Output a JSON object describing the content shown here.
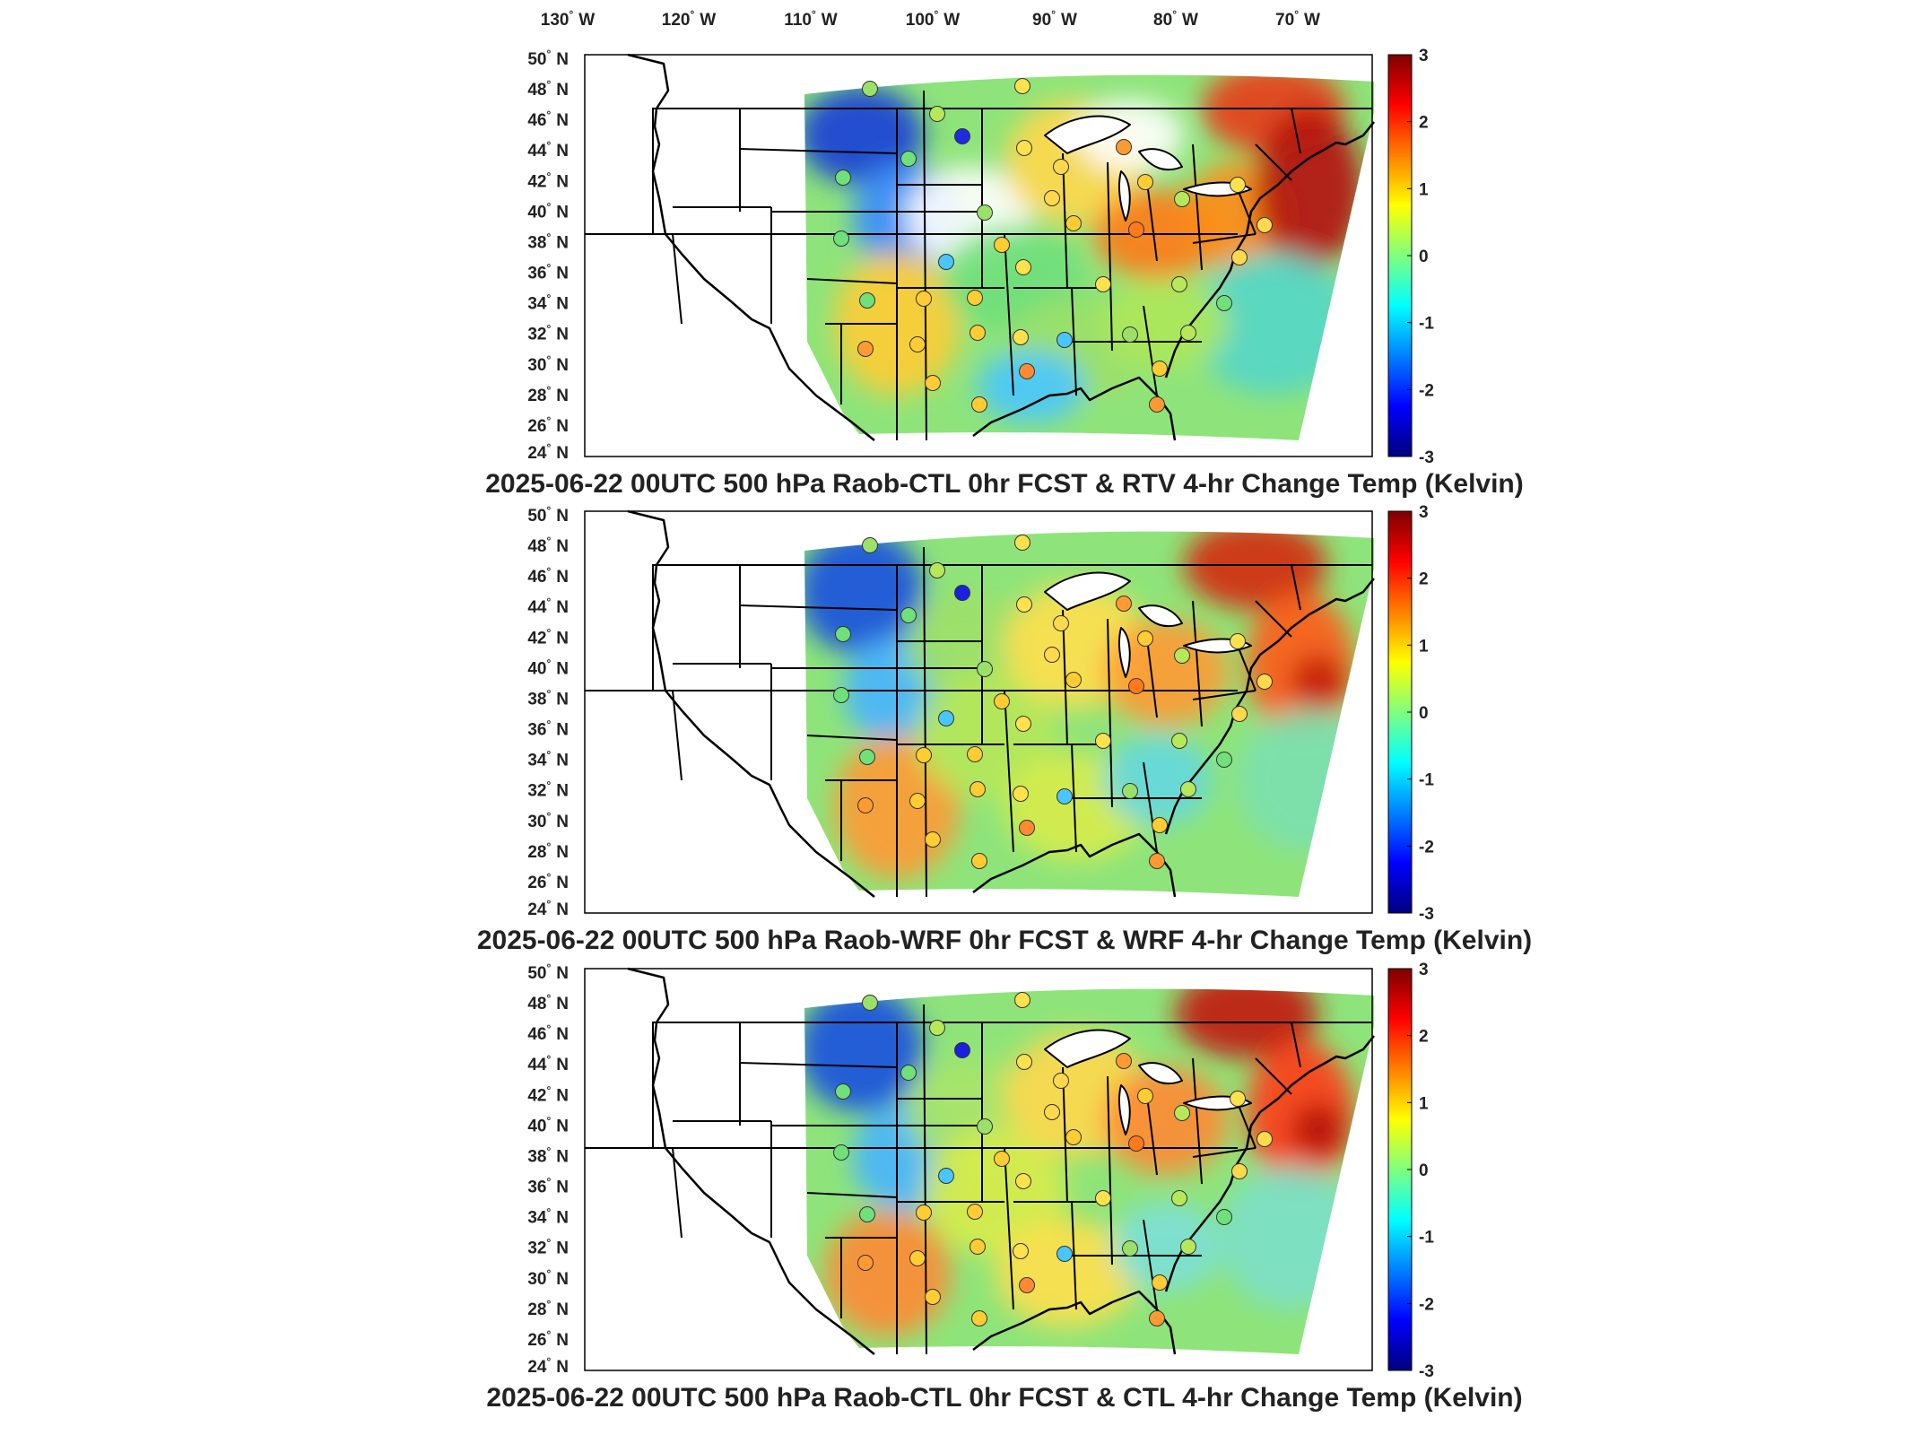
{
  "longitude_labels": [
    {
      "deg": "130",
      "hemi": "W"
    },
    {
      "deg": "120",
      "hemi": "W"
    },
    {
      "deg": "110",
      "hemi": "W"
    },
    {
      "deg": "100",
      "hemi": "W"
    },
    {
      "deg": "90",
      "hemi": "W"
    },
    {
      "deg": "80",
      "hemi": "W"
    },
    {
      "deg": "70",
      "hemi": "W"
    }
  ],
  "latitude_labels": [
    {
      "deg": "50",
      "hemi": "N"
    },
    {
      "deg": "48",
      "hemi": "N"
    },
    {
      "deg": "46",
      "hemi": "N"
    },
    {
      "deg": "44",
      "hemi": "N"
    },
    {
      "deg": "42",
      "hemi": "N"
    },
    {
      "deg": "40",
      "hemi": "N"
    },
    {
      "deg": "38",
      "hemi": "N"
    },
    {
      "deg": "36",
      "hemi": "N"
    },
    {
      "deg": "34",
      "hemi": "N"
    },
    {
      "deg": "32",
      "hemi": "N"
    },
    {
      "deg": "30",
      "hemi": "N"
    },
    {
      "deg": "28",
      "hemi": "N"
    },
    {
      "deg": "26",
      "hemi": "N"
    },
    {
      "deg": "24",
      "hemi": "N"
    }
  ],
  "colorbar": {
    "ticks": [
      "3",
      "2",
      "1",
      "0",
      "-1",
      "-2",
      "-3"
    ],
    "colors": [
      "#7f0000",
      "#ff0000",
      "#ff8000",
      "#ffff00",
      "#80ff80",
      "#00ffff",
      "#0080ff",
      "#0000ff",
      "#00007f"
    ]
  },
  "panels": [
    {
      "title": "2025-06-22 00UTC 500 hPa Raob-CTL 0hr FCST & RTV 4-hr Change Temp (Kelvin)"
    },
    {
      "title": "2025-06-22 00UTC 500 hPa Raob-WRF 0hr FCST & WRF 4-hr Change Temp (Kelvin)"
    },
    {
      "title": "2025-06-22 00UTC 500 hPa Raob-CTL 0hr FCST & CTL 4-hr Change Temp (Kelvin)"
    }
  ]
}
